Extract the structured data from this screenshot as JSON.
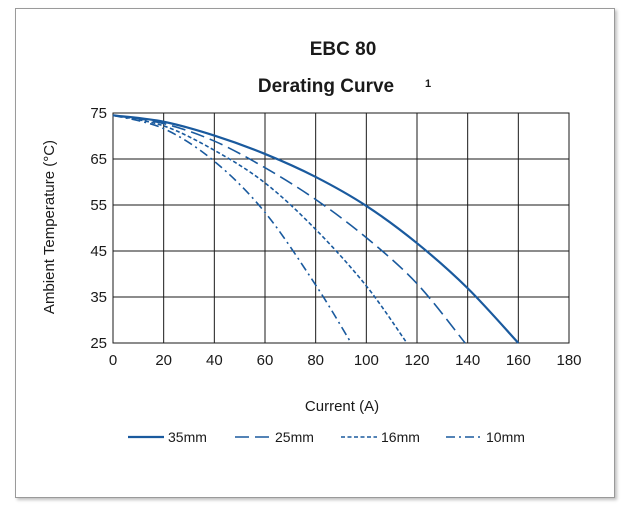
{
  "chart_data": {
    "type": "line",
    "title": "EBC 80",
    "subtitle": "Derating Curve",
    "subtitle_superscript": "1",
    "xlabel": "Current (A)",
    "ylabel": "Ambient  Temperature (°C)",
    "xlim": [
      0,
      180
    ],
    "ylim": [
      25,
      75
    ],
    "x_ticks": [
      "0",
      "20",
      "40",
      "60",
      "80",
      "100",
      "120",
      "140",
      "160",
      "180"
    ],
    "y_ticks": [
      "25",
      "35",
      "45",
      "55",
      "65",
      "75"
    ],
    "grid": true,
    "legend_position": "bottom",
    "color": "#1a5a9e",
    "series": [
      {
        "name": "35mm",
        "style": "solid",
        "x": [
          0,
          20,
          40,
          60,
          80,
          100,
          120,
          140,
          160
        ],
        "y": [
          74.5,
          73.1,
          70.1,
          66.1,
          61.1,
          54.8,
          46.7,
          36.9,
          25
        ]
      },
      {
        "name": "25mm",
        "style": "dashed",
        "x": [
          0,
          20,
          40,
          60,
          80,
          100,
          120,
          139
        ],
        "y": [
          74.5,
          72.7,
          68.9,
          63.1,
          56.2,
          47.9,
          37.9,
          25
        ]
      },
      {
        "name": "16mm",
        "style": "dotted",
        "x": [
          0,
          20,
          40,
          60,
          80,
          100,
          116
        ],
        "y": [
          74.5,
          72.2,
          66.9,
          59.8,
          49.7,
          37.4,
          25
        ]
      },
      {
        "name": "10mm",
        "style": "dashdot",
        "x": [
          0,
          20,
          40,
          60,
          80,
          94
        ],
        "y": [
          74.5,
          71.6,
          64.5,
          53.4,
          37.6,
          25
        ]
      }
    ]
  }
}
